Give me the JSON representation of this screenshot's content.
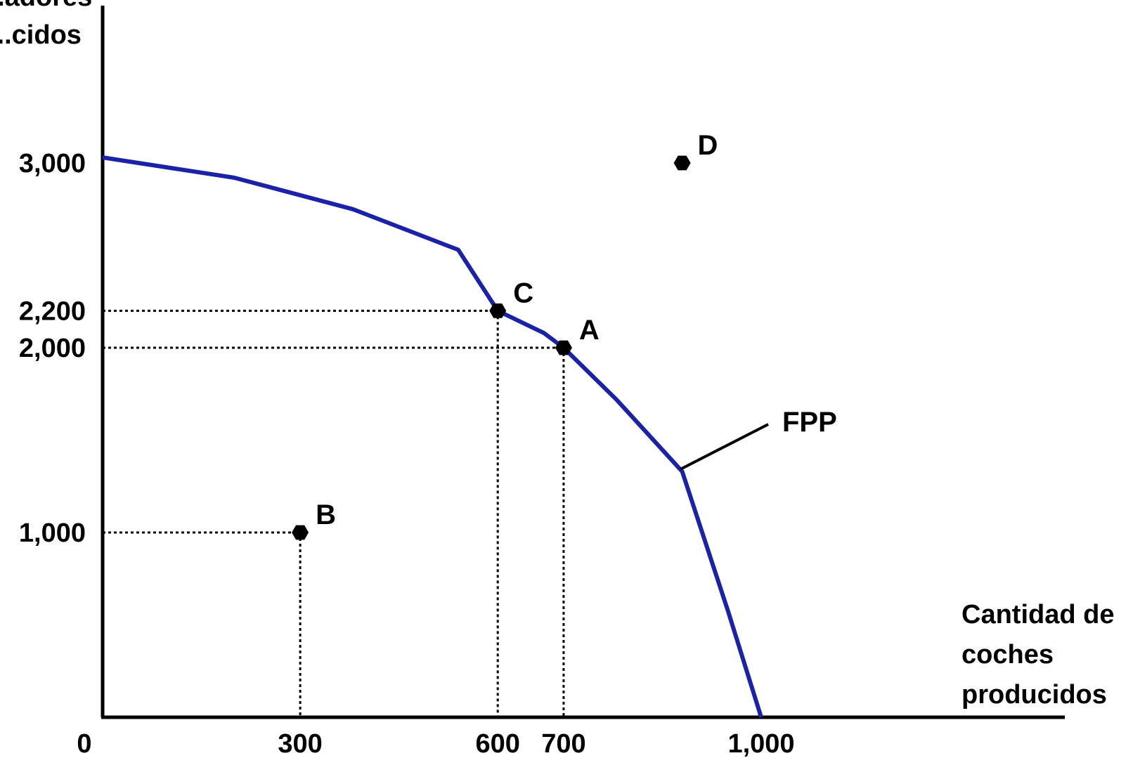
{
  "colors": {
    "curve": "#1a23a8",
    "axis": "#000000",
    "point": "#000000"
  },
  "chart_data": {
    "type": "line",
    "title": "",
    "ylabel_lines": [
      "...adores",
      "...cidos"
    ],
    "xlabel_lines": [
      "Cantidad de",
      "coches",
      "producidos"
    ],
    "x_ticks": [
      {
        "value": 0,
        "label": "0"
      },
      {
        "value": 300,
        "label": "300"
      },
      {
        "value": 600,
        "label": "600"
      },
      {
        "value": 700,
        "label": "700"
      },
      {
        "value": 1000,
        "label": "1,000"
      }
    ],
    "y_ticks": [
      {
        "value": 1000,
        "label": "1,000"
      },
      {
        "value": 2000,
        "label": "2,000"
      },
      {
        "value": 2200,
        "label": "2,200"
      },
      {
        "value": 3000,
        "label": "3,000"
      }
    ],
    "series": [
      {
        "name": "FPP",
        "points": [
          [
            0,
            3030
          ],
          [
            200,
            2920
          ],
          [
            380,
            2750
          ],
          [
            540,
            2530
          ],
          [
            600,
            2200
          ],
          [
            670,
            2080
          ],
          [
            700,
            2000
          ],
          [
            780,
            1720
          ],
          [
            880,
            1330
          ],
          [
            950,
            570
          ],
          [
            1000,
            0
          ]
        ]
      }
    ],
    "points": [
      {
        "label": "A",
        "x": 700,
        "y": 2000,
        "guides": true
      },
      {
        "label": "B",
        "x": 300,
        "y": 1000,
        "guides": true
      },
      {
        "label": "C",
        "x": 600,
        "y": 2200,
        "guides": true
      },
      {
        "label": "D",
        "x": 880,
        "y": 3000,
        "guides": false
      }
    ],
    "curve_label": "FPP"
  }
}
